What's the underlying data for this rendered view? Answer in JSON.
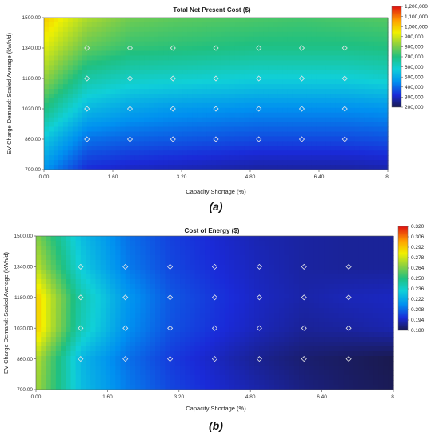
{
  "chart_data": [
    {
      "type": "heatmap",
      "title": "Total Net Present Cost ($)",
      "caption": "(a)",
      "xlabel": "Capacity Shortage (%)",
      "ylabel": "EV Charge Demand: Scaled Average (kWh/d)",
      "xlim": [
        0,
        8
      ],
      "ylim": [
        700,
        1500
      ],
      "x_ticks": [
        "0.00",
        "1.60",
        "3.20",
        "4.80",
        "6.40",
        "8."
      ],
      "y_ticks": [
        "700.00",
        "860.00",
        "1020.00",
        "1180.00",
        "1340.00",
        "1500.00"
      ],
      "colorbar": {
        "min": 200000,
        "max": 1200000,
        "labels": [
          "1,200,000",
          "1,100,000",
          "1,000,000",
          "900,000",
          "800,000",
          "700,000",
          "600,000",
          "500,000",
          "400,000",
          "300,000",
          "200,000"
        ]
      },
      "x": [
        0,
        1,
        2,
        3,
        4,
        5,
        6,
        7,
        8
      ],
      "y": [
        700,
        860,
        1020,
        1180,
        1340,
        1500
      ],
      "z": [
        [
          460000,
          320000,
          300000,
          290000,
          280000,
          270000,
          270000,
          270000,
          280000
        ],
        [
          560000,
          410000,
          390000,
          380000,
          370000,
          360000,
          360000,
          360000,
          370000
        ],
        [
          700000,
          530000,
          490000,
          470000,
          460000,
          450000,
          450000,
          450000,
          460000
        ],
        [
          830000,
          650000,
          610000,
          600000,
          590000,
          580000,
          580000,
          580000,
          600000
        ],
        [
          920000,
          770000,
          720000,
          710000,
          700000,
          690000,
          690000,
          690000,
          700000
        ],
        [
          1000000,
          860000,
          790000,
          770000,
          760000,
          750000,
          740000,
          750000,
          760000
        ]
      ]
    },
    {
      "type": "heatmap",
      "title": "Cost of Energy ($)",
      "caption": "(b)",
      "xlabel": "Capacity Shortage (%)",
      "ylabel": "EV Charge Demand: Scaled Average (kWh/d)",
      "xlim": [
        0,
        8
      ],
      "ylim": [
        700,
        1500
      ],
      "x_ticks": [
        "0.00",
        "1.60",
        "3.20",
        "4.80",
        "6.40",
        "8."
      ],
      "y_ticks": [
        "700.00",
        "860.00",
        "1020.00",
        "1180.00",
        "1340.00",
        "1500.00"
      ],
      "colorbar": {
        "min": 0.18,
        "max": 0.32,
        "labels": [
          "0.320",
          "0.306",
          "0.292",
          "0.278",
          "0.264",
          "0.250",
          "0.236",
          "0.222",
          "0.208",
          "0.194",
          "0.180"
        ]
      },
      "x": [
        0,
        1,
        2,
        3,
        4,
        5,
        6,
        7,
        8
      ],
      "y": [
        700,
        860,
        1020,
        1180,
        1340,
        1500
      ],
      "z": [
        [
          0.27,
          0.228,
          0.212,
          0.202,
          0.196,
          0.191,
          0.186,
          0.183,
          0.181
        ],
        [
          0.274,
          0.226,
          0.21,
          0.2,
          0.194,
          0.188,
          0.184,
          0.182,
          0.18
        ],
        [
          0.292,
          0.24,
          0.216,
          0.204,
          0.198,
          0.193,
          0.189,
          0.19,
          0.192
        ],
        [
          0.292,
          0.242,
          0.218,
          0.205,
          0.199,
          0.194,
          0.191,
          0.193,
          0.194
        ],
        [
          0.275,
          0.232,
          0.212,
          0.202,
          0.197,
          0.193,
          0.19,
          0.189,
          0.189
        ],
        [
          0.266,
          0.228,
          0.21,
          0.201,
          0.196,
          0.192,
          0.19,
          0.189,
          0.189
        ]
      ]
    }
  ]
}
